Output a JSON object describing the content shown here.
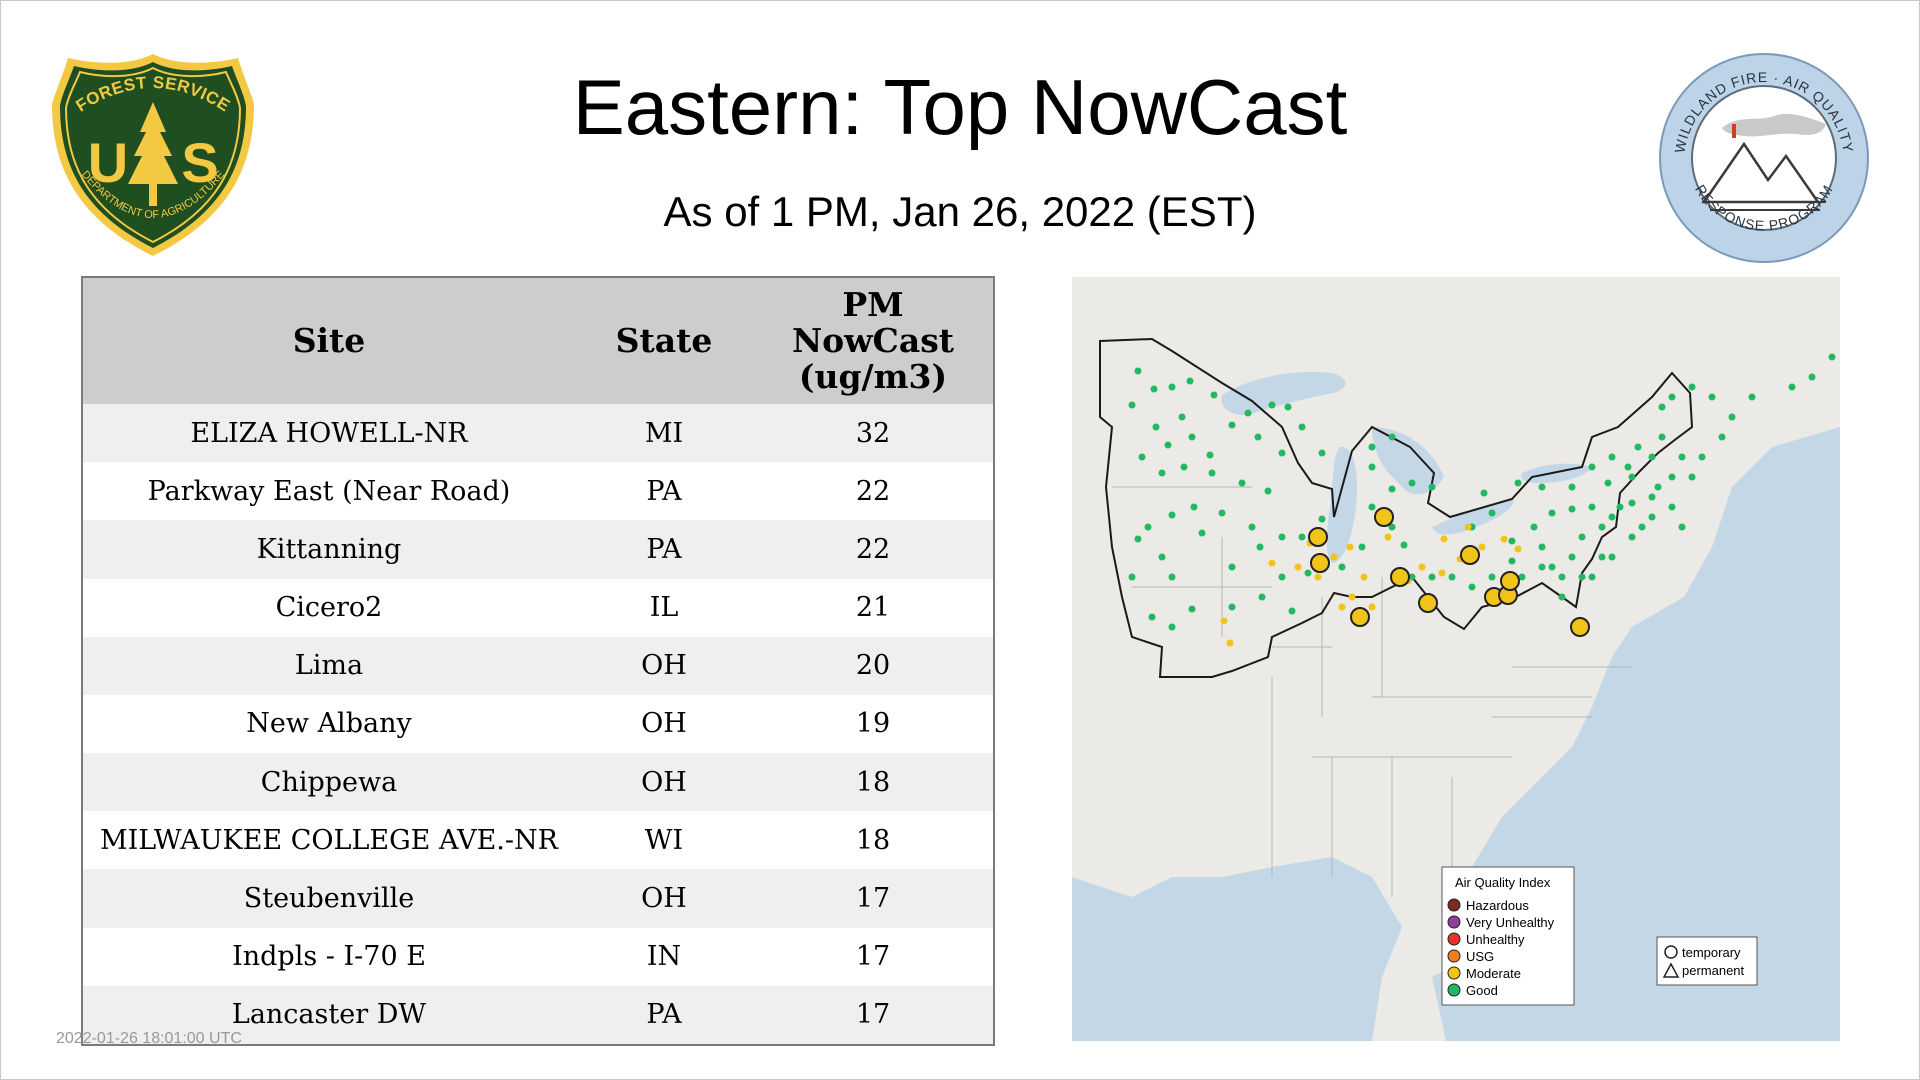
{
  "title": "Eastern: Top NowCast",
  "subtitle": "As of  1 PM, Jan 26, 2022 (EST)",
  "logos": {
    "usfs": {
      "top_text": "FOREST SERVICE",
      "bottom_text": "DEPARTMENT OF AGRICULTURE",
      "letters_left": "U",
      "letters_right": "S"
    },
    "wfaq": {
      "top_text": "WILDLAND FIRE · AIR QUALITY",
      "bottom_text": "RESPONSE PROGRAM"
    }
  },
  "table": {
    "headers": [
      "Site",
      "State",
      "PM NowCast (ug/m3)"
    ],
    "header_value_lines": [
      "PM",
      "NowCast",
      "(ug/m3)"
    ],
    "rows": [
      {
        "site": "ELIZA HOWELL-NR",
        "state": "MI",
        "value": "32"
      },
      {
        "site": "Parkway East (Near Road)",
        "state": "PA",
        "value": "22"
      },
      {
        "site": "Kittanning",
        "state": "PA",
        "value": "22"
      },
      {
        "site": "Cicero2",
        "state": "IL",
        "value": "21"
      },
      {
        "site": "Lima",
        "state": "OH",
        "value": "20"
      },
      {
        "site": "New Albany",
        "state": "OH",
        "value": "19"
      },
      {
        "site": "Chippewa",
        "state": "OH",
        "value": "18"
      },
      {
        "site": "MILWAUKEE COLLEGE AVE.-NR",
        "state": "WI",
        "value": "18"
      },
      {
        "site": "Steubenville",
        "state": "OH",
        "value": "17"
      },
      {
        "site": "Indpls - I-70 E",
        "state": "IN",
        "value": "17"
      },
      {
        "site": "Lancaster DW",
        "state": "PA",
        "value": "17"
      }
    ]
  },
  "map": {
    "legend": {
      "title": "Air Quality Index",
      "categories": [
        {
          "label": "Hazardous",
          "color": "#7e2a22"
        },
        {
          "label": "Very Unhealthy",
          "color": "#8f3f97"
        },
        {
          "label": "Unhealthy",
          "color": "#e8322c"
        },
        {
          "label": "USG",
          "color": "#f27f1c"
        },
        {
          "label": "Moderate",
          "color": "#f2c318"
        },
        {
          "label": "Good",
          "color": "#22b861"
        }
      ],
      "monitor_types": [
        "temporary",
        "permanent"
      ]
    }
  },
  "colors": {
    "header_bg": "#cdcdcd",
    "row_odd": "#efefef",
    "row_even": "#ffffff",
    "water": "#c4d7e7",
    "land": "#eceae6",
    "good": "#22b861",
    "moderate": "#f2c318"
  },
  "footer_timestamp": "2022-01-26 18:01:00 UTC"
}
